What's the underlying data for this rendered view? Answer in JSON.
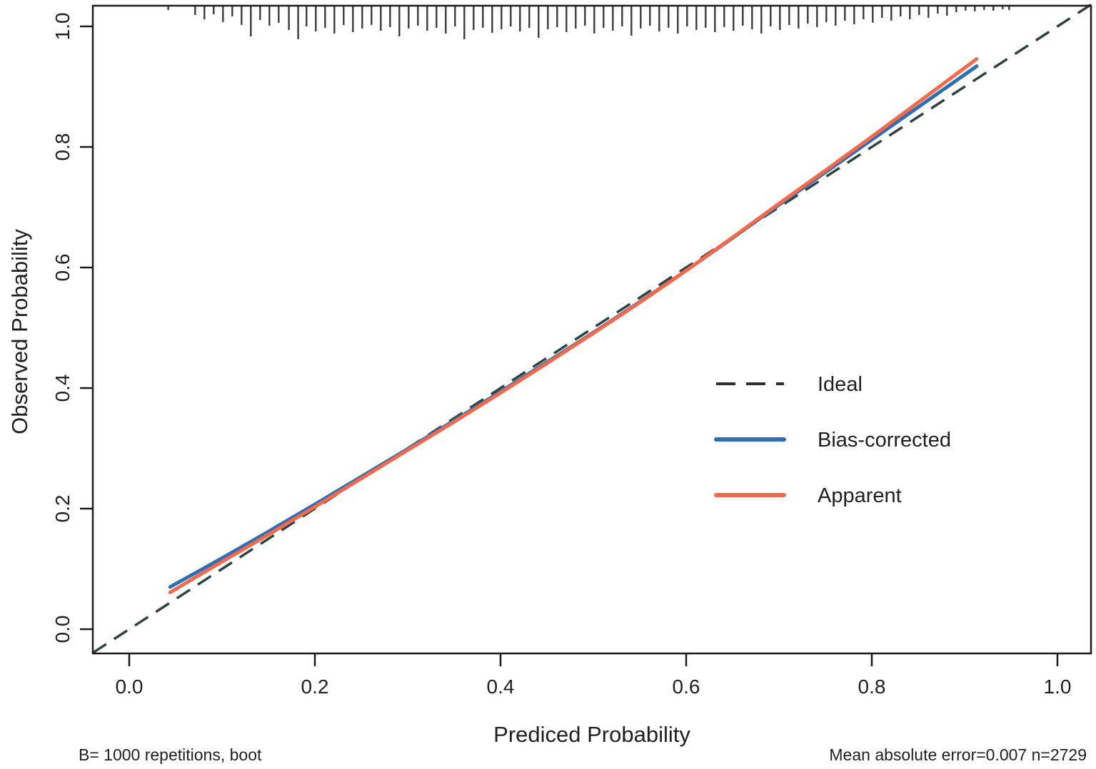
{
  "chart_data": {
    "type": "line",
    "title": "",
    "xlabel": "Prediced Probability",
    "ylabel": "Observed Probability",
    "xlim": [
      -0.04,
      1.04
    ],
    "ylim": [
      -0.04,
      1.04
    ],
    "grid": false,
    "legend_position": "center-right",
    "x_ticks": [
      "0.0",
      "0.2",
      "0.4",
      "0.6",
      "0.8",
      "1.0"
    ],
    "y_ticks": [
      "0.0",
      "0.2",
      "0.4",
      "0.6",
      "0.8",
      "1.0"
    ],
    "axis_color": "#1a1a1a",
    "series": [
      {
        "name": "Ideal",
        "line_style": "dashed",
        "color": "#2e433f",
        "x": [
          -0.039,
          1.036
        ],
        "y": [
          -0.039,
          1.036
        ]
      },
      {
        "name": "Bias-corrected",
        "line_style": "solid",
        "color": "#2f6db5",
        "x": [
          0.044,
          0.1,
          0.15,
          0.2,
          0.25,
          0.3,
          0.35,
          0.4,
          0.45,
          0.5,
          0.55,
          0.6,
          0.65,
          0.7,
          0.75,
          0.8,
          0.85,
          0.913
        ],
        "y": [
          0.07,
          0.118,
          0.162,
          0.207,
          0.253,
          0.299,
          0.346,
          0.394,
          0.443,
          0.492,
          0.543,
          0.595,
          0.649,
          0.704,
          0.758,
          0.812,
          0.866,
          0.934
        ]
      },
      {
        "name": "Apparent",
        "line_style": "solid",
        "color": "#f2694c",
        "x": [
          0.044,
          0.1,
          0.15,
          0.2,
          0.25,
          0.3,
          0.35,
          0.4,
          0.45,
          0.5,
          0.55,
          0.6,
          0.65,
          0.7,
          0.75,
          0.8,
          0.85,
          0.913
        ],
        "y": [
          0.061,
          0.112,
          0.157,
          0.203,
          0.25,
          0.297,
          0.344,
          0.392,
          0.441,
          0.491,
          0.542,
          0.595,
          0.65,
          0.706,
          0.761,
          0.817,
          0.874,
          0.946
        ]
      }
    ],
    "rug": {
      "description": "distribution of predicted probabilities as tick marks hanging from the top axis",
      "color": "#3a3a3a",
      "ticks": [
        {
          "x": 0.042,
          "len": 5
        },
        {
          "x": 0.071,
          "len": 12
        },
        {
          "x": 0.081,
          "len": 18
        },
        {
          "x": 0.091,
          "len": 11
        },
        {
          "x": 0.101,
          "len": 22
        },
        {
          "x": 0.111,
          "len": 14
        },
        {
          "x": 0.121,
          "len": 26
        },
        {
          "x": 0.131,
          "len": 42
        },
        {
          "x": 0.141,
          "len": 19
        },
        {
          "x": 0.151,
          "len": 27
        },
        {
          "x": 0.161,
          "len": 23
        },
        {
          "x": 0.172,
          "len": 33
        },
        {
          "x": 0.182,
          "len": 46
        },
        {
          "x": 0.191,
          "len": 28
        },
        {
          "x": 0.201,
          "len": 35
        },
        {
          "x": 0.211,
          "len": 30
        },
        {
          "x": 0.221,
          "len": 38
        },
        {
          "x": 0.231,
          "len": 26
        },
        {
          "x": 0.241,
          "len": 36
        },
        {
          "x": 0.251,
          "len": 31
        },
        {
          "x": 0.261,
          "len": 26
        },
        {
          "x": 0.271,
          "len": 34
        },
        {
          "x": 0.281,
          "len": 29
        },
        {
          "x": 0.291,
          "len": 42
        },
        {
          "x": 0.301,
          "len": 31
        },
        {
          "x": 0.311,
          "len": 27
        },
        {
          "x": 0.321,
          "len": 34
        },
        {
          "x": 0.331,
          "len": 30
        },
        {
          "x": 0.341,
          "len": 38
        },
        {
          "x": 0.351,
          "len": 28
        },
        {
          "x": 0.361,
          "len": 46
        },
        {
          "x": 0.371,
          "len": 33
        },
        {
          "x": 0.381,
          "len": 30
        },
        {
          "x": 0.391,
          "len": 37
        },
        {
          "x": 0.401,
          "len": 32
        },
        {
          "x": 0.411,
          "len": 28
        },
        {
          "x": 0.421,
          "len": 35
        },
        {
          "x": 0.431,
          "len": 30
        },
        {
          "x": 0.441,
          "len": 44
        },
        {
          "x": 0.451,
          "len": 32
        },
        {
          "x": 0.461,
          "len": 29
        },
        {
          "x": 0.471,
          "len": 36
        },
        {
          "x": 0.481,
          "len": 31
        },
        {
          "x": 0.491,
          "len": 27
        },
        {
          "x": 0.501,
          "len": 38
        },
        {
          "x": 0.511,
          "len": 30
        },
        {
          "x": 0.521,
          "len": 34
        },
        {
          "x": 0.531,
          "len": 28
        },
        {
          "x": 0.541,
          "len": 41
        },
        {
          "x": 0.551,
          "len": 31
        },
        {
          "x": 0.561,
          "len": 27
        },
        {
          "x": 0.571,
          "len": 35
        },
        {
          "x": 0.581,
          "len": 30
        },
        {
          "x": 0.591,
          "len": 38
        },
        {
          "x": 0.601,
          "len": 28
        },
        {
          "x": 0.611,
          "len": 33
        },
        {
          "x": 0.621,
          "len": 30
        },
        {
          "x": 0.631,
          "len": 36
        },
        {
          "x": 0.641,
          "len": 29
        },
        {
          "x": 0.651,
          "len": 34
        },
        {
          "x": 0.661,
          "len": 27
        },
        {
          "x": 0.671,
          "len": 32
        },
        {
          "x": 0.681,
          "len": 38
        },
        {
          "x": 0.691,
          "len": 28
        },
        {
          "x": 0.701,
          "len": 33
        },
        {
          "x": 0.711,
          "len": 26
        },
        {
          "x": 0.721,
          "len": 31
        },
        {
          "x": 0.731,
          "len": 24
        },
        {
          "x": 0.741,
          "len": 29
        },
        {
          "x": 0.751,
          "len": 22
        },
        {
          "x": 0.761,
          "len": 27
        },
        {
          "x": 0.771,
          "len": 20
        },
        {
          "x": 0.781,
          "len": 25
        },
        {
          "x": 0.791,
          "len": 18
        },
        {
          "x": 0.801,
          "len": 23
        },
        {
          "x": 0.811,
          "len": 16
        },
        {
          "x": 0.821,
          "len": 20
        },
        {
          "x": 0.831,
          "len": 14
        },
        {
          "x": 0.841,
          "len": 18
        },
        {
          "x": 0.851,
          "len": 12
        },
        {
          "x": 0.861,
          "len": 16
        },
        {
          "x": 0.871,
          "len": 10
        },
        {
          "x": 0.881,
          "len": 13
        },
        {
          "x": 0.891,
          "len": 8
        },
        {
          "x": 0.901,
          "len": 6
        },
        {
          "x": 0.911,
          "len": 7
        },
        {
          "x": 0.921,
          "len": 5
        },
        {
          "x": 0.931,
          "len": 6
        },
        {
          "x": 0.941,
          "len": 4
        },
        {
          "x": 0.948,
          "len": 5
        }
      ]
    },
    "footnotes": {
      "left": "B= 1000 repetitions, boot",
      "right": "Mean absolute error=0.007 n=2729"
    }
  }
}
